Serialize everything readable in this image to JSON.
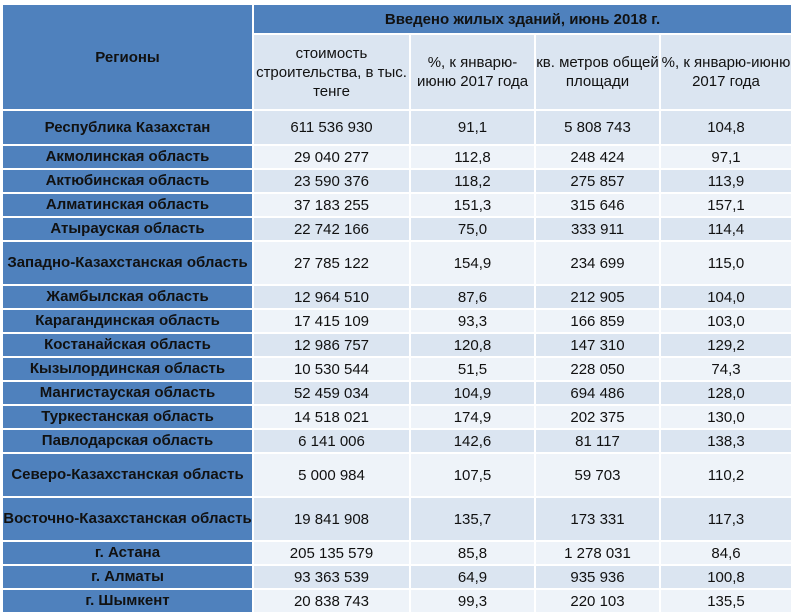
{
  "table": {
    "corner_header": "Регионы",
    "banner_header": "Введено жилых зданий, июнь 2018 г.",
    "columns": [
      "стоимость строительства, в тыс. тенге",
      "%, к январю-июню 2017 года",
      "кв. метров общей площади",
      "%, к январю-июню 2017 года"
    ],
    "rows": [
      {
        "region": "Республика Казахстан",
        "cost": "611 536 930",
        "cost_pct": "91,1",
        "area": "5 808 743",
        "area_pct": "104,8"
      },
      {
        "region": "Акмолинская область",
        "cost": "29 040 277",
        "cost_pct": "112,8",
        "area": "248 424",
        "area_pct": "97,1"
      },
      {
        "region": "Актюбинская область",
        "cost": "23 590 376",
        "cost_pct": "118,2",
        "area": "275 857",
        "area_pct": "113,9"
      },
      {
        "region": "Алматинская область",
        "cost": "37 183 255",
        "cost_pct": "151,3",
        "area": "315 646",
        "area_pct": "157,1"
      },
      {
        "region": "Атырауская область",
        "cost": "22 742 166",
        "cost_pct": "75,0",
        "area": "333 911",
        "area_pct": "114,4"
      },
      {
        "region": "Западно-Казахстанская область",
        "cost": "27 785 122",
        "cost_pct": "154,9",
        "area": "234 699",
        "area_pct": "115,0"
      },
      {
        "region": "Жамбылская область",
        "cost": "12 964 510",
        "cost_pct": "87,6",
        "area": "212 905",
        "area_pct": "104,0"
      },
      {
        "region": "Карагандинская область",
        "cost": "17 415 109",
        "cost_pct": "93,3",
        "area": "166 859",
        "area_pct": "103,0"
      },
      {
        "region": "Костанайская область",
        "cost": "12 986 757",
        "cost_pct": "120,8",
        "area": "147 310",
        "area_pct": "129,2"
      },
      {
        "region": "Кызылординская область",
        "cost": "10 530 544",
        "cost_pct": "51,5",
        "area": "228 050",
        "area_pct": "74,3"
      },
      {
        "region": "Мангистауская область",
        "cost": "52 459 034",
        "cost_pct": "104,9",
        "area": "694 486",
        "area_pct": "128,0"
      },
      {
        "region": "Туркестанская область",
        "cost": "14 518 021",
        "cost_pct": "174,9",
        "area": "202 375",
        "area_pct": "130,0"
      },
      {
        "region": "Павлодарская область",
        "cost": "6 141 006",
        "cost_pct": "142,6",
        "area": "81 117",
        "area_pct": "138,3"
      },
      {
        "region": "Северо-Казахстанская область",
        "cost": "5 000 984",
        "cost_pct": "107,5",
        "area": "59 703",
        "area_pct": "110,2"
      },
      {
        "region": "Восточно-Казахстанская область",
        "cost": "19 841 908",
        "cost_pct": "135,7",
        "area": "173 331",
        "area_pct": "117,3"
      },
      {
        "region": "г. Астана",
        "cost": "205 135 579",
        "cost_pct": "85,8",
        "area": "1 278 031",
        "area_pct": "84,6"
      },
      {
        "region": "г. Алматы",
        "cost": "93 363 539",
        "cost_pct": "64,9",
        "area": "935 936",
        "area_pct": "100,8"
      },
      {
        "region": "г. Шымкент",
        "cost": "20 838 743",
        "cost_pct": "99,3",
        "area": "220 103",
        "area_pct": "135,5"
      }
    ]
  }
}
